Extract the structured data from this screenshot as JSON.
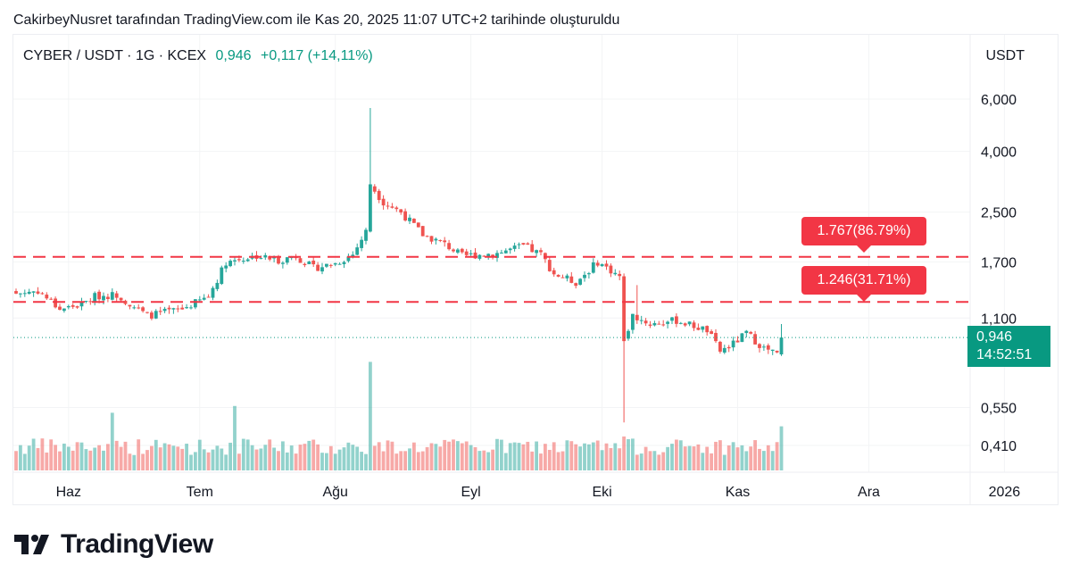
{
  "caption": "CakirbeyNusret tarafından TradingView.com ile Kas 20, 2025 11:07 UTC+2 tarihinde oluşturuldu",
  "legend": {
    "symbol": "CYBER / USDT · 1G · KCEX",
    "last": "0,946",
    "change": "+0,117 (+14,11%)"
  },
  "unit": "USDT",
  "price_tag": {
    "price": "0,946",
    "countdown": "14:52:51"
  },
  "alerts": [
    {
      "label": "1.767(86.79%)",
      "level": 1.767
    },
    {
      "label": "1.246(31.71%)",
      "level": 1.246
    }
  ],
  "brand": {
    "name": "TradingView"
  },
  "colors": {
    "up": "#26a69a",
    "down": "#ef5350",
    "alert": "#f23645",
    "last_price": "#089981"
  },
  "chart_data": {
    "type": "candlestick",
    "scale": "log",
    "y_ticks": [
      {
        "value": 6.0,
        "label": "6,000"
      },
      {
        "value": 4.0,
        "label": "4,000"
      },
      {
        "value": 2.5,
        "label": "2,500"
      },
      {
        "value": 1.7,
        "label": "1,700"
      },
      {
        "value": 1.1,
        "label": "1,100"
      },
      {
        "value": 0.55,
        "label": "0,550"
      },
      {
        "value": 0.41,
        "label": "0,410"
      }
    ],
    "x_ticks": [
      {
        "label": "Haz",
        "index": 12
      },
      {
        "label": "Tem",
        "index": 42
      },
      {
        "label": "Ağu",
        "index": 73
      },
      {
        "label": "Eyl",
        "index": 104
      },
      {
        "label": "Eki",
        "index": 134
      },
      {
        "label": "Kas",
        "index": 165
      },
      {
        "label": "Ara",
        "index": 195
      },
      {
        "label": "2026",
        "index": 226
      }
    ],
    "horizontal_lines": [
      1.767,
      1.246
    ],
    "last_price": 0.946,
    "anchors": [
      {
        "i": 0,
        "p": 1.33
      },
      {
        "i": 5,
        "p": 1.36
      },
      {
        "i": 10,
        "p": 1.18
      },
      {
        "i": 15,
        "p": 1.22
      },
      {
        "i": 18,
        "p": 1.3
      },
      {
        "i": 23,
        "p": 1.32
      },
      {
        "i": 30,
        "p": 1.12
      },
      {
        "i": 38,
        "p": 1.18
      },
      {
        "i": 44,
        "p": 1.3
      },
      {
        "i": 48,
        "p": 1.7
      },
      {
        "i": 55,
        "p": 1.78
      },
      {
        "i": 60,
        "p": 1.72
      },
      {
        "i": 64,
        "p": 1.78
      },
      {
        "i": 68,
        "p": 1.62
      },
      {
        "i": 73,
        "p": 1.68
      },
      {
        "i": 77,
        "p": 1.8
      },
      {
        "i": 80,
        "p": 2.15
      },
      {
        "i": 81,
        "p": 3.1
      },
      {
        "i": 84,
        "p": 2.7
      },
      {
        "i": 88,
        "p": 2.5
      },
      {
        "i": 93,
        "p": 2.1
      },
      {
        "i": 98,
        "p": 1.95
      },
      {
        "i": 102,
        "p": 1.78
      },
      {
        "i": 110,
        "p": 1.82
      },
      {
        "i": 116,
        "p": 1.92
      },
      {
        "i": 120,
        "p": 1.8
      },
      {
        "i": 123,
        "p": 1.55
      },
      {
        "i": 128,
        "p": 1.45
      },
      {
        "i": 133,
        "p": 1.7
      },
      {
        "i": 138,
        "p": 1.52
      },
      {
        "i": 139,
        "p": 0.92
      },
      {
        "i": 141,
        "p": 1.12
      },
      {
        "i": 145,
        "p": 1.05
      },
      {
        "i": 151,
        "p": 1.08
      },
      {
        "i": 158,
        "p": 1.0
      },
      {
        "i": 161,
        "p": 0.85
      },
      {
        "i": 164,
        "p": 0.9
      },
      {
        "i": 167,
        "p": 0.98
      },
      {
        "i": 171,
        "p": 0.87
      },
      {
        "i": 174,
        "p": 0.83
      },
      {
        "i": 175,
        "p": 0.946
      }
    ],
    "spikes": [
      {
        "i": 81,
        "high": 5.6
      },
      {
        "i": 139,
        "low": 0.49
      },
      {
        "i": 142,
        "high": 1.42
      },
      {
        "i": 175,
        "high": 1.05
      }
    ],
    "volume_spikes": [
      {
        "i": 81,
        "v": 3.2
      },
      {
        "i": 139,
        "v": 1.0
      },
      {
        "i": 50,
        "v": 1.9
      },
      {
        "i": 22,
        "v": 1.7
      },
      {
        "i": 175,
        "v": 1.3
      }
    ]
  }
}
